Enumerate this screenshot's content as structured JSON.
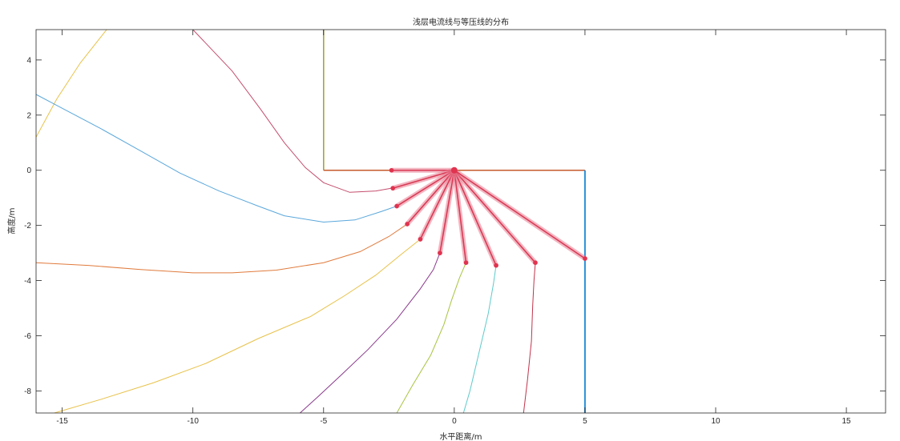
{
  "chart_data": {
    "type": "line",
    "title": "浅层电流线与等压线的分布",
    "xlabel": "水平距离/m",
    "ylabel": "高度/m",
    "xlim": [
      -16,
      16.5
    ],
    "ylim": [
      -8.8,
      5.1
    ],
    "xticks": [
      -15,
      -10,
      -5,
      0,
      5,
      10,
      15
    ],
    "yticks": [
      4,
      2,
      0,
      -2,
      -4,
      -6,
      -8
    ],
    "grid": false,
    "source_point": [
      0,
      0
    ],
    "boundary": [
      {
        "points": [
          [
            -5,
            5.1
          ],
          [
            -5,
            0
          ]
        ],
        "color": "#a0a030",
        "width": 1.5
      },
      {
        "points": [
          [
            -5,
            0
          ],
          [
            5,
            0
          ]
        ],
        "color": "#c55a2a",
        "width": 1.5
      },
      {
        "points": [
          [
            5,
            0
          ],
          [
            5,
            -8.8
          ]
        ],
        "color": "#2a8fd8",
        "width": 2
      }
    ],
    "current_rays": [
      {
        "end": [
          -2.4,
          0
        ]
      },
      {
        "end": [
          -2.35,
          -0.65
        ]
      },
      {
        "end": [
          -2.2,
          -1.3
        ]
      },
      {
        "end": [
          -1.8,
          -1.95
        ]
      },
      {
        "end": [
          -1.3,
          -2.5
        ]
      },
      {
        "end": [
          -0.55,
          -3.0
        ]
      },
      {
        "end": [
          0.45,
          -3.35
        ]
      },
      {
        "end": [
          1.6,
          -3.45
        ]
      },
      {
        "end": [
          3.1,
          -3.35
        ]
      },
      {
        "end": [
          5.0,
          -3.2
        ]
      }
    ],
    "series": [
      {
        "color": "#e8c24a",
        "points": [
          [
            -16,
            1.2
          ],
          [
            -15.2,
            2.6
          ],
          [
            -14.3,
            3.9
          ],
          [
            -13.3,
            5.1
          ]
        ]
      },
      {
        "color": "#c44e6e",
        "points": [
          [
            -10,
            5.1
          ],
          [
            -8.5,
            3.6
          ],
          [
            -7.4,
            2.2
          ],
          [
            -6.5,
            1.0
          ],
          [
            -5.7,
            0.1
          ],
          [
            -5.0,
            -0.45
          ],
          [
            -4.0,
            -0.8
          ],
          [
            -3.0,
            -0.75
          ],
          [
            -2.4,
            -0.65
          ]
        ]
      },
      {
        "color": "#5aa7db",
        "points": [
          [
            -16,
            2.75
          ],
          [
            -14.8,
            2.15
          ],
          [
            -13.5,
            1.5
          ],
          [
            -12,
            0.7
          ],
          [
            -10.5,
            -0.1
          ],
          [
            -9,
            -0.75
          ],
          [
            -7.5,
            -1.3
          ],
          [
            -6.5,
            -1.65
          ],
          [
            -5.0,
            -1.88
          ],
          [
            -3.8,
            -1.8
          ],
          [
            -2.8,
            -1.5
          ],
          [
            -2.2,
            -1.3
          ]
        ]
      },
      {
        "color": "#e07b3d",
        "points": [
          [
            -16,
            -3.35
          ],
          [
            -14,
            -3.45
          ],
          [
            -12,
            -3.6
          ],
          [
            -10,
            -3.72
          ],
          [
            -8.5,
            -3.72
          ],
          [
            -6.8,
            -3.62
          ],
          [
            -5.0,
            -3.35
          ],
          [
            -3.6,
            -2.95
          ],
          [
            -2.5,
            -2.4
          ],
          [
            -1.8,
            -1.95
          ]
        ]
      },
      {
        "color": "#e8c24a",
        "points": [
          [
            -15.3,
            -8.8
          ],
          [
            -13.5,
            -8.3
          ],
          [
            -11.5,
            -7.7
          ],
          [
            -9.5,
            -7.0
          ],
          [
            -7.5,
            -6.1
          ],
          [
            -5.5,
            -5.3
          ],
          [
            -4.2,
            -4.55
          ],
          [
            -3.0,
            -3.8
          ],
          [
            -2.1,
            -3.1
          ],
          [
            -1.3,
            -2.5
          ]
        ]
      },
      {
        "color": "#8a3a8c",
        "points": [
          [
            -5.9,
            -8.8
          ],
          [
            -5.2,
            -8.2
          ],
          [
            -4.3,
            -7.4
          ],
          [
            -3.3,
            -6.5
          ],
          [
            -2.2,
            -5.4
          ],
          [
            -1.3,
            -4.3
          ],
          [
            -0.8,
            -3.6
          ],
          [
            -0.55,
            -3.0
          ]
        ]
      },
      {
        "color": "#a7c440",
        "points": [
          [
            -2.2,
            -8.8
          ],
          [
            -1.6,
            -7.8
          ],
          [
            -0.9,
            -6.7
          ],
          [
            -0.4,
            -5.6
          ],
          [
            -0.1,
            -4.7
          ],
          [
            0.2,
            -3.9
          ],
          [
            0.45,
            -3.35
          ]
        ]
      },
      {
        "color": "#5ecacb",
        "points": [
          [
            0.35,
            -8.8
          ],
          [
            0.6,
            -8.0
          ],
          [
            0.95,
            -6.6
          ],
          [
            1.3,
            -5.2
          ],
          [
            1.5,
            -4.1
          ],
          [
            1.6,
            -3.45
          ]
        ]
      },
      {
        "color": "#c0334b",
        "points": [
          [
            2.65,
            -8.8
          ],
          [
            2.8,
            -7.6
          ],
          [
            2.95,
            -6.2
          ],
          [
            3.0,
            -4.9
          ],
          [
            3.05,
            -4.0
          ],
          [
            3.1,
            -3.35
          ]
        ]
      }
    ]
  }
}
